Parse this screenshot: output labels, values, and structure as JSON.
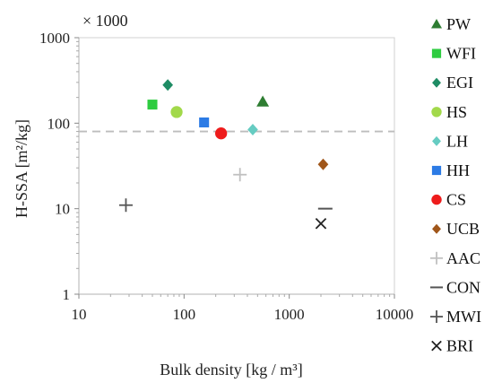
{
  "chart_data": {
    "type": "scatter",
    "title": "",
    "multiplier_label": "× 1000",
    "xlabel": "Bulk density [kg / m³]",
    "ylabel": "H-SSA [m²/kg]",
    "x_scale": "log",
    "y_scale": "log",
    "xlim": [
      10,
      10000
    ],
    "ylim": [
      1,
      1000
    ],
    "x_ticks": [
      "10",
      "100",
      "1000",
      "10000"
    ],
    "y_ticks": [
      "1",
      "10",
      "100",
      "1000"
    ],
    "grid": false,
    "reference_line_y": 80,
    "legend_position": "right",
    "series": [
      {
        "name": "PW",
        "marker": "triangle",
        "color": "#2e7d32",
        "x": 560,
        "y": 178
      },
      {
        "name": "WFI",
        "marker": "square",
        "color": "#2ecc40",
        "x": 50,
        "y": 165
      },
      {
        "name": "EGI",
        "marker": "diamond",
        "color": "#1e8c64",
        "x": 70,
        "y": 280
      },
      {
        "name": "HS",
        "marker": "circle",
        "color": "#a2d94a",
        "x": 85,
        "y": 135
      },
      {
        "name": "LH",
        "marker": "diamond",
        "color": "#66ccc2",
        "x": 450,
        "y": 84
      },
      {
        "name": "HH",
        "marker": "square",
        "color": "#2c7be5",
        "x": 155,
        "y": 102
      },
      {
        "name": "CS",
        "marker": "circle",
        "color": "#ee1c1c",
        "x": 225,
        "y": 76
      },
      {
        "name": "UCB",
        "marker": "diamond",
        "color": "#a0561a",
        "x": 2100,
        "y": 33
      },
      {
        "name": "AAC",
        "marker": "plus",
        "color": "#c0c0c0",
        "x": 340,
        "y": 25
      },
      {
        "name": "CON",
        "marker": "dash",
        "color": "#555555",
        "x": 2200,
        "y": 10
      },
      {
        "name": "MWI",
        "marker": "plus",
        "color": "#555555",
        "x": 28,
        "y": 11
      },
      {
        "name": "BRI",
        "marker": "cross",
        "color": "#222222",
        "x": 2000,
        "y": 6.7
      }
    ]
  }
}
